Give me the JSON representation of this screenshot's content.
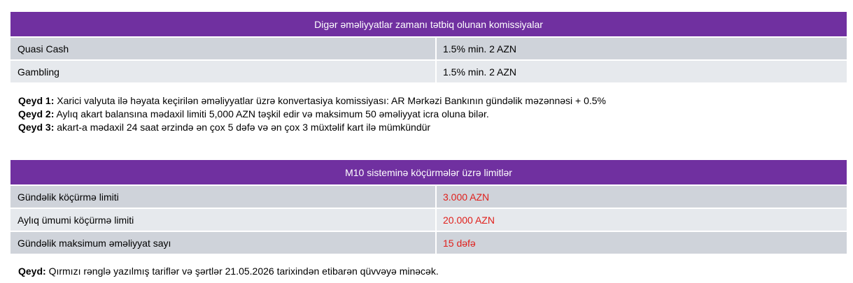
{
  "table1": {
    "title": "Digər əməliyyatlar zamanı tətbiq olunan komissiyalar",
    "rows": [
      {
        "label": "Quasi Cash",
        "value": "1.5% min. 2 AZN"
      },
      {
        "label": "Gambling",
        "value": "1.5% min. 2 AZN"
      }
    ]
  },
  "notes1": [
    {
      "label": "Qeyd 1:",
      "text": " Xarici valyuta ilə həyata keçirilən əməliyyatlar üzrə konvertasiya komissiyası: AR Mərkəzi Bankının gündəlik məzənnəsi + 0.5%"
    },
    {
      "label": "Qeyd 2:",
      "text": " Aylıq akart balansına mədaxil limiti 5,000 AZN təşkil edir və maksimum 50 əməliyyat icra oluna bilər."
    },
    {
      "label": "Qeyd 3:",
      "text": " akart-a mədaxil 24 saat ərzində ən çox 5 dəfə və ən çox 3 müxtəlif kart ilə mümkündür"
    }
  ],
  "table2": {
    "title": "M10 sisteminə köçürmələr üzrə limitlər",
    "rows": [
      {
        "label": "Gündəlik köçürmə limiti",
        "value": "3.000 AZN"
      },
      {
        "label": "Aylıq ümumi köçürmə limiti",
        "value": "20.000 AZN"
      },
      {
        "label": "Gündəlik maksimum əməliyyat sayı",
        "value": "15 dəfə"
      }
    ]
  },
  "note2": {
    "label": "Qeyd:",
    "text": " Qırmızı rənglə yazılmış tariflər və şərtlər 21.05.2026 tarixindən etibarən qüvvəyə minəcək."
  },
  "colors": {
    "header": "#7030a0",
    "highlight": "#e0201c"
  }
}
